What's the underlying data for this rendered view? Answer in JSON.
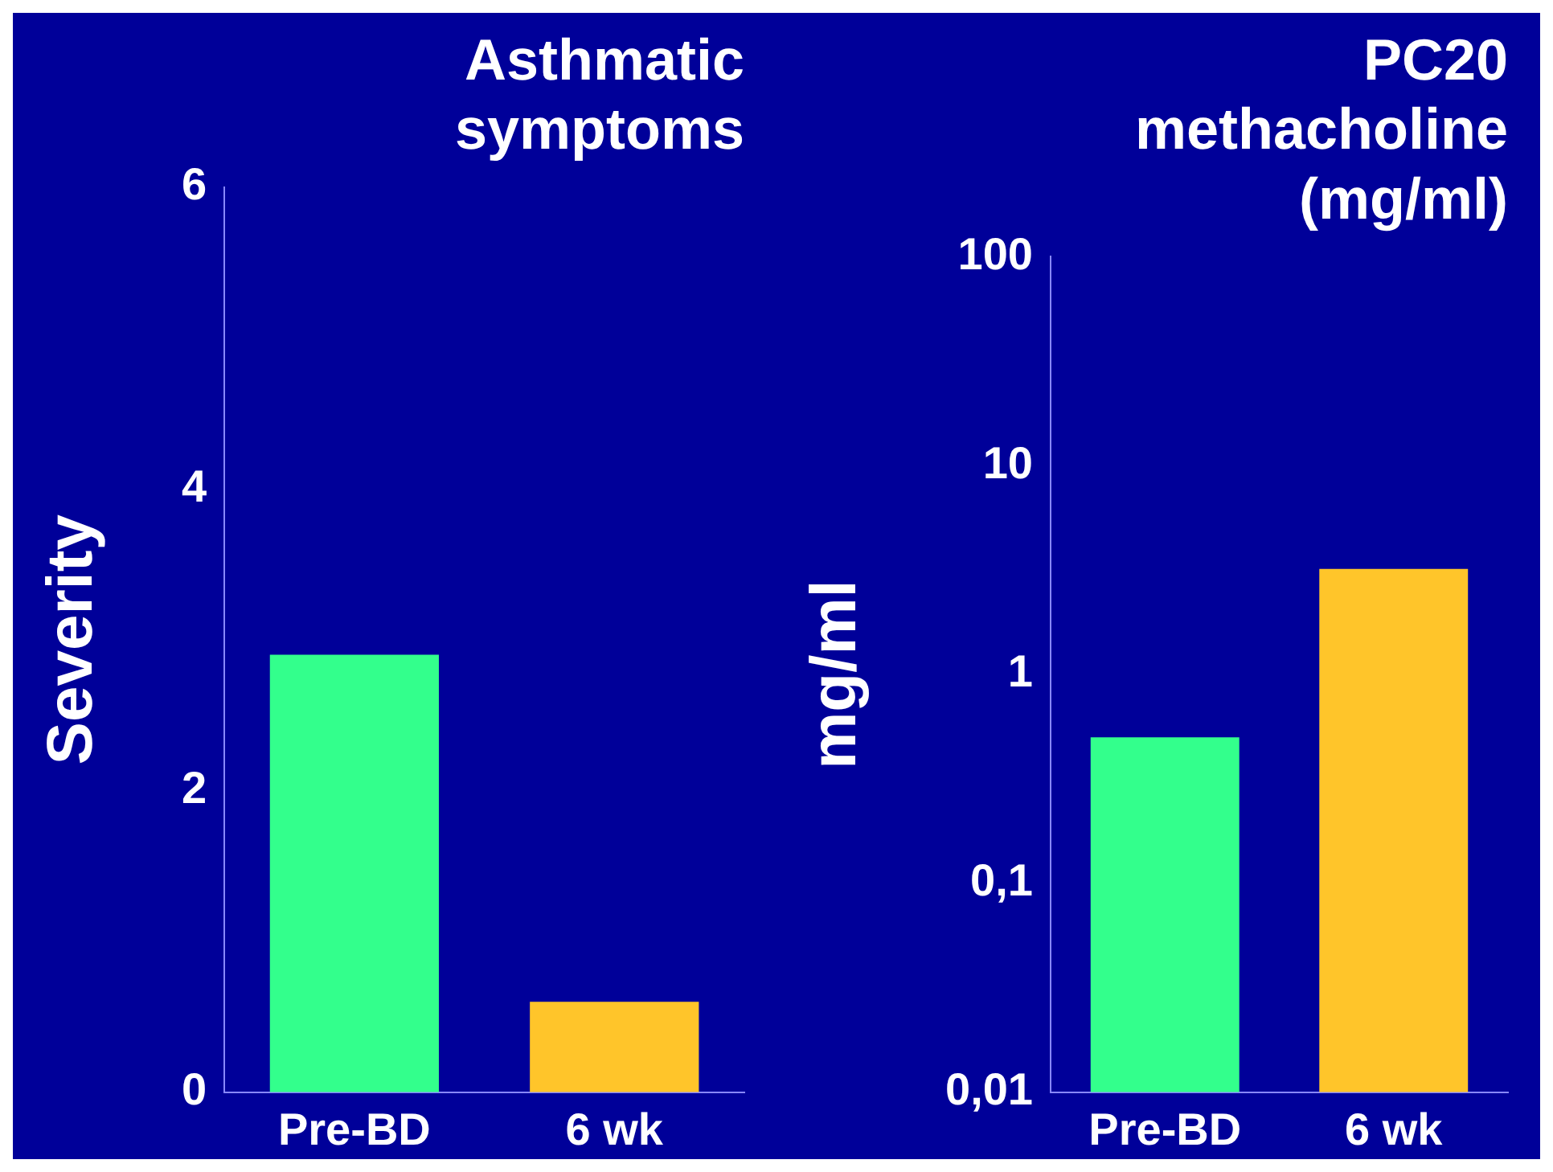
{
  "chart_data": [
    {
      "type": "bar",
      "title": "Asthmatic\nsymptoms",
      "ylabel": "Severity",
      "categories": [
        "Pre-BD",
        "6 wk"
      ],
      "values": [
        2.9,
        0.6
      ],
      "colors": [
        "#33ff8c",
        "#ffc52a"
      ],
      "ylim": [
        0,
        6
      ],
      "yticks": [
        0,
        2,
        4,
        6
      ],
      "grid": false,
      "legend": false
    },
    {
      "type": "bar",
      "title": "PC20\nmethacholine\n(mg/ml)",
      "ylabel": "mg/ml",
      "categories": [
        "Pre-BD",
        "6 wk"
      ],
      "values": [
        0.5,
        3.2
      ],
      "colors": [
        "#33ff8c",
        "#ffc52a"
      ],
      "log": "y",
      "ylim": [
        0.01,
        100
      ],
      "yticks": [
        {
          "value": 0.01,
          "label": "0,01"
        },
        {
          "value": 0.1,
          "label": "0,1"
        },
        1,
        10,
        100
      ],
      "grid": false,
      "legend": false
    }
  ]
}
